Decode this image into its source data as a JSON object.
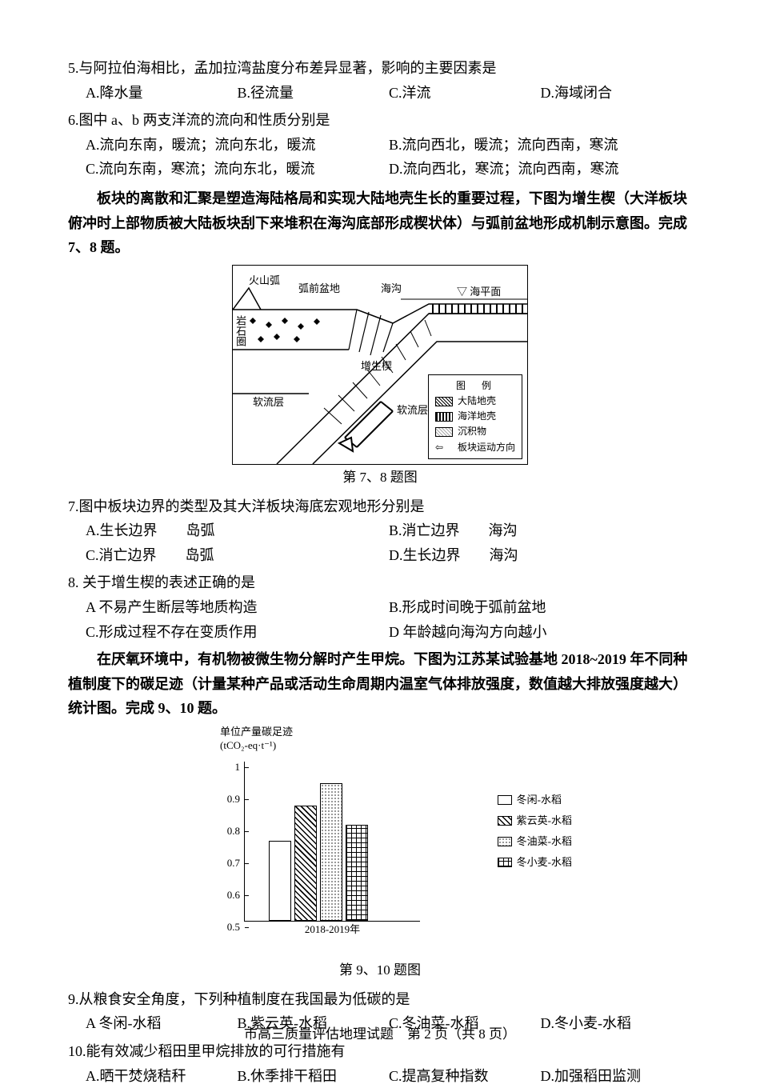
{
  "q5": {
    "stem": "5.与阿拉伯海相比，孟加拉湾盐度分布差异显著，影响的主要因素是",
    "opts": [
      "A.降水量",
      "B.径流量",
      "C.洋流",
      "D.海域闭合"
    ]
  },
  "q6": {
    "stem": "6.图中 a、b 两支洋流的流向和性质分别是",
    "opts": [
      "A.流向东南，暖流；流向东北，暖流",
      "B.流向西北，暖流；流向西南，寒流",
      "C.流向东南，寒流；流向东北，暖流",
      "D.流向西北，寒流；流向西南，寒流"
    ]
  },
  "passage78": "板块的离散和汇聚是塑造海陆格局和实现大陆地壳生长的重要过程，下图为增生楔（大洋板块俯冲时上部物质被大陆板块刮下来堆积在海沟底部形成楔状体）与弧前盆地形成机制示意图。完成 7、8 题。",
  "diagram1": {
    "labels": {
      "volcano": "火山弧",
      "forearc": "弧前盆地",
      "trench": "海沟",
      "sealevel": "▽ 海平面",
      "lithosphere": "岩石圈",
      "wedge": "增生楔",
      "asth1": "软流层",
      "asth2": "软流层"
    },
    "legend": {
      "title": "图　例",
      "items": [
        {
          "key": "cont",
          "label": "大陆地壳"
        },
        {
          "key": "ocean",
          "label": "海洋地壳"
        },
        {
          "key": "sed",
          "label": "沉积物"
        },
        {
          "key": "arrow",
          "label": "板块运动方向"
        }
      ]
    },
    "caption": "第 7、8 题图"
  },
  "q7": {
    "stem": "7.图中板块边界的类型及其大洋板块海底宏观地形分别是",
    "opts": [
      "A.生长边界　　岛弧",
      "B.消亡边界　　海沟",
      "C.消亡边界　　岛弧",
      "D.生长边界　　海沟"
    ]
  },
  "q8": {
    "stem": "8. 关于增生楔的表述正确的是",
    "opts": [
      "A 不易产生断层等地质构造",
      "B.形成时间晚于弧前盆地",
      "C.形成过程不存在变质作用",
      "D 年龄越向海沟方向越小"
    ]
  },
  "passage910": "在厌氧环境中，有机物被微生物分解时产生甲烷。下图为江苏某试验基地 2018~2019 年不同种植制度下的碳足迹（计量某种产品或活动生命周期内温室气体排放强度，数值越大排放强度越大）统计图。完成 9、10 题。",
  "chart": {
    "ylabel_top": "单位产量碳足迹",
    "ylabel_unit": "(tCO₂-eq·t⁻¹)",
    "ylim": [
      0.5,
      1.0
    ],
    "yticks": [
      0.5,
      0.6,
      0.7,
      0.8,
      0.9,
      1.0
    ],
    "xlabel": "2018-2019年",
    "series": [
      {
        "label": "冬闲-水稻",
        "value": 0.75,
        "class": "bar-white"
      },
      {
        "label": "紫云英-水稻",
        "value": 0.86,
        "class": "bar-hatch"
      },
      {
        "label": "冬油菜-水稻",
        "value": 0.93,
        "class": "bar-dots"
      },
      {
        "label": "冬小麦-水稻",
        "value": 0.8,
        "class": "bar-grid"
      }
    ],
    "caption": "第 9、10 题图"
  },
  "q9": {
    "stem": "9.从粮食安全角度，下列种植制度在我国最为低碳的是",
    "opts": [
      "A 冬闲-水稻",
      "B.紫云英-水稻",
      "C.冬油菜-水稻",
      "D.冬小麦-水稻"
    ]
  },
  "q10": {
    "stem": "10.能有效减少稻田里甲烷排放的可行措施有",
    "opts": [
      "A.晒干焚烧秸秆",
      "B.休季排干稻田",
      "C.提高复种指数",
      "D.加强稻田监测"
    ]
  },
  "footer": "市高三质量评估地理试题　第 2 页（共 8 页）"
}
